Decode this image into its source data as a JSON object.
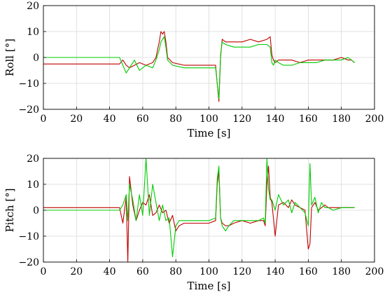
{
  "chart_data": [
    {
      "type": "line",
      "title": "",
      "xlabel": "Time [s]",
      "ylabel": "Roll [°]",
      "xlim": [
        0,
        200
      ],
      "ylim": [
        -20,
        20
      ],
      "xticks": [
        "0",
        "20",
        "40",
        "60",
        "80",
        "100",
        "120",
        "140",
        "160",
        "180",
        "200"
      ],
      "yticks": [
        "-20",
        "-10",
        "0",
        "10",
        "20"
      ],
      "grid": true,
      "series": [
        {
          "color": "#c00000",
          "x": [
            0,
            44,
            46,
            48,
            50,
            52,
            55,
            58,
            62,
            66,
            68,
            70,
            71,
            72,
            73,
            74,
            75,
            78,
            85,
            95,
            104,
            105,
            106,
            107,
            108,
            110,
            115,
            120,
            125,
            130,
            135,
            137,
            138,
            139,
            140,
            142,
            145,
            150,
            155,
            160,
            165,
            170,
            175,
            180,
            184,
            186,
            188
          ],
          "y": [
            -2.5,
            -2.5,
            -2.5,
            -1,
            -3,
            -4,
            -3,
            -2,
            -3,
            -2,
            0,
            6,
            10,
            9,
            10,
            6,
            0,
            -2,
            -3,
            -3,
            -3,
            -10,
            -17,
            0,
            7,
            6,
            6,
            6,
            7,
            6,
            7,
            8,
            1,
            -1,
            -2,
            -1,
            -1,
            -1,
            -2,
            -1,
            -1,
            -1,
            -1,
            0,
            -1,
            -1,
            -2
          ]
        },
        {
          "color": "#00cc00",
          "x": [
            0,
            44,
            46,
            48,
            50,
            52,
            55,
            58,
            62,
            66,
            68,
            70,
            71,
            72,
            73,
            74,
            75,
            78,
            85,
            95,
            104,
            105,
            106,
            107,
            108,
            110,
            115,
            120,
            125,
            130,
            135,
            137,
            138,
            139,
            140,
            142,
            145,
            150,
            155,
            160,
            165,
            170,
            175,
            180,
            184,
            186,
            188
          ],
          "y": [
            0,
            0,
            0,
            -3,
            -6,
            -4,
            -1,
            -5,
            -3,
            -4,
            -1,
            3,
            6,
            7,
            8,
            4,
            -1,
            -3,
            -4,
            -4,
            -4,
            -10,
            -16,
            1,
            6,
            5,
            4,
            4,
            4,
            5,
            5,
            4,
            -2,
            -3,
            -1,
            -2,
            -3,
            -3,
            -2,
            -2,
            -2,
            -1,
            -1,
            -1,
            0,
            -1,
            -2
          ]
        }
      ]
    },
    {
      "type": "line",
      "title": "",
      "xlabel": "Time [s]",
      "ylabel": "Pitch [°]",
      "xlim": [
        0,
        200
      ],
      "ylim": [
        -20,
        20
      ],
      "xticks": [
        "0",
        "20",
        "40",
        "60",
        "80",
        "100",
        "120",
        "140",
        "160",
        "180",
        "200"
      ],
      "yticks": [
        "-20",
        "-10",
        "0",
        "10",
        "20"
      ],
      "grid": true,
      "series": [
        {
          "color": "#c00000",
          "x": [
            0,
            44,
            46,
            48,
            50,
            51,
            52,
            54,
            56,
            58,
            60,
            62,
            64,
            66,
            68,
            70,
            72,
            74,
            76,
            78,
            80,
            82,
            85,
            90,
            95,
            100,
            104,
            105,
            106,
            107,
            108,
            110,
            112,
            115,
            120,
            125,
            130,
            133,
            134,
            135,
            136,
            137,
            138,
            140,
            142,
            145,
            148,
            150,
            152,
            155,
            158,
            160,
            161,
            162,
            164,
            166,
            168,
            170,
            172,
            175,
            180,
            185,
            188
          ],
          "y": [
            1,
            1,
            1,
            -5,
            5,
            -20,
            13,
            2,
            -4,
            0,
            3,
            2,
            6,
            -2,
            -1,
            2,
            -1,
            0,
            -5,
            -2,
            -8,
            -6,
            -5,
            -5,
            -5,
            -5,
            -4,
            10,
            15,
            -3,
            -5,
            -6,
            -6,
            -5,
            -4,
            -5,
            -4,
            -4,
            -6,
            10,
            17,
            5,
            3,
            -10,
            2,
            3,
            1,
            4,
            2,
            1,
            0,
            -15,
            -13,
            1,
            3,
            0,
            1,
            2,
            1,
            1,
            1,
            1,
            1
          ]
        },
        {
          "color": "#00cc00",
          "x": [
            0,
            44,
            46,
            48,
            50,
            51,
            52,
            54,
            56,
            58,
            60,
            62,
            64,
            66,
            68,
            70,
            72,
            74,
            76,
            78,
            80,
            82,
            85,
            90,
            95,
            100,
            104,
            105,
            106,
            107,
            108,
            110,
            112,
            115,
            120,
            125,
            130,
            133,
            134,
            135,
            136,
            137,
            138,
            140,
            142,
            145,
            148,
            150,
            152,
            155,
            158,
            160,
            161,
            162,
            164,
            166,
            168,
            170,
            172,
            175,
            180,
            185,
            188
          ],
          "y": [
            0,
            0,
            0,
            2,
            6,
            -4,
            10,
            4,
            -4,
            6,
            -2,
            20,
            -2,
            10,
            3,
            -4,
            2,
            -4,
            -3,
            -18,
            -6,
            -4,
            -4,
            -4,
            -4,
            -4,
            -3,
            12,
            17,
            -3,
            -6,
            -8,
            -6,
            -4,
            -4,
            -4,
            -4,
            -3,
            -5,
            20,
            8,
            4,
            4,
            0,
            6,
            2,
            4,
            -1,
            3,
            1,
            -1,
            -6,
            18,
            2,
            5,
            -1,
            3,
            1,
            1,
            0,
            1,
            1,
            1
          ]
        }
      ]
    }
  ]
}
